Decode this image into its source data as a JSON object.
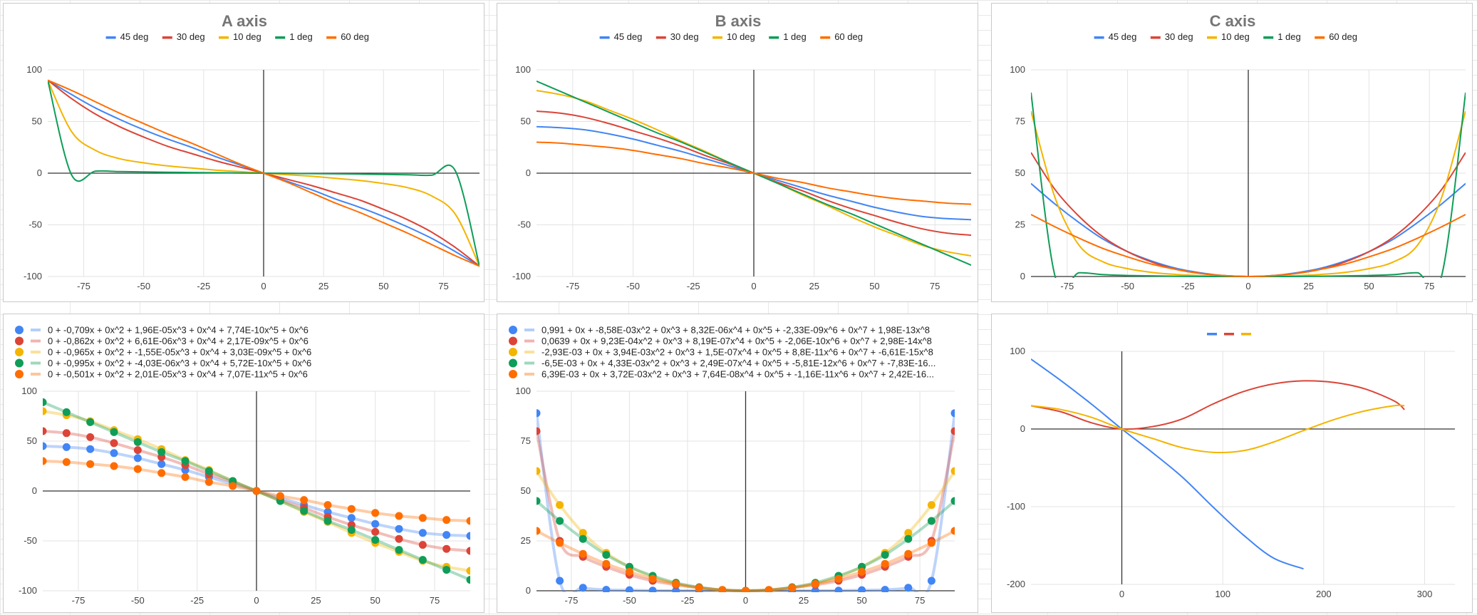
{
  "chart_data": [
    {
      "id": "A",
      "type": "line",
      "title": "A axis",
      "legend_position": "top",
      "grid": true,
      "xlim": [
        -90,
        90
      ],
      "ylim": [
        -100,
        100
      ],
      "xticks": [
        -75,
        -50,
        -25,
        0,
        25,
        50,
        75
      ],
      "yticks": [
        100,
        50,
        0,
        -50,
        -100
      ],
      "series": [
        {
          "name": "45 deg",
          "color": "#4285f4"
        },
        {
          "name": "30 deg",
          "color": "#db4437"
        },
        {
          "name": "10 deg",
          "color": "#f4b400"
        },
        {
          "name": "1 deg",
          "color": "#0f9d58"
        },
        {
          "name": "60 deg",
          "color": "#ff6d01"
        }
      ],
      "x": [
        -90,
        -80,
        -70,
        -60,
        -50,
        -40,
        -30,
        -20,
        -10,
        0,
        10,
        20,
        30,
        40,
        50,
        60,
        70,
        80,
        90
      ],
      "data": [
        [
          90,
          76,
          63,
          52,
          42,
          33,
          25,
          16,
          8,
          0,
          -8,
          -16,
          -25,
          -33,
          -42,
          -52,
          -63,
          -76,
          -90
        ],
        [
          90,
          72,
          57,
          45,
          35,
          26,
          19,
          12,
          6,
          0,
          -6,
          -12,
          -19,
          -26,
          -35,
          -45,
          -57,
          -72,
          -90
        ],
        [
          90,
          40,
          22,
          14,
          10,
          7,
          5,
          3,
          1.5,
          0,
          -1.5,
          -3,
          -5,
          -7,
          -10,
          -14,
          -22,
          -40,
          -90
        ],
        [
          90,
          -2,
          2,
          1.5,
          1.2,
          0.9,
          0.6,
          0.4,
          0.2,
          0,
          -0.2,
          -0.4,
          -0.6,
          -0.9,
          -1.2,
          -1.5,
          -2,
          2,
          -90
        ],
        [
          90,
          80,
          69,
          58,
          48,
          38,
          29,
          19,
          9,
          0,
          -9,
          -19,
          -29,
          -38,
          -48,
          -58,
          -69,
          -80,
          -90
        ]
      ]
    },
    {
      "id": "B",
      "type": "line",
      "title": "B axis",
      "legend_position": "top",
      "grid": true,
      "xlim": [
        -90,
        90
      ],
      "ylim": [
        -100,
        100
      ],
      "xticks": [
        -75,
        -50,
        -25,
        0,
        25,
        50,
        75
      ],
      "yticks": [
        100,
        50,
        0,
        -50,
        -100
      ],
      "series": [
        {
          "name": "45 deg",
          "color": "#4285f4"
        },
        {
          "name": "30 deg",
          "color": "#db4437"
        },
        {
          "name": "10 deg",
          "color": "#f4b400"
        },
        {
          "name": "1 deg",
          "color": "#0f9d58"
        },
        {
          "name": "60 deg",
          "color": "#ff6d01"
        }
      ],
      "x": [
        -90,
        -80,
        -70,
        -60,
        -50,
        -40,
        -30,
        -20,
        -10,
        0,
        10,
        20,
        30,
        40,
        50,
        60,
        70,
        80,
        90
      ],
      "data": [
        [
          45,
          44,
          42,
          38,
          33,
          27,
          21,
          14,
          7,
          0,
          -7,
          -14,
          -21,
          -27,
          -33,
          -38,
          -42,
          -44,
          -45
        ],
        [
          60,
          58,
          54,
          48,
          41,
          34,
          26,
          17,
          9,
          0,
          -9,
          -17,
          -26,
          -34,
          -41,
          -48,
          -54,
          -58,
          -60
        ],
        [
          80,
          76,
          70,
          61,
          52,
          42,
          31,
          21,
          10,
          0,
          -10,
          -21,
          -31,
          -42,
          -52,
          -61,
          -70,
          -76,
          -80
        ],
        [
          89,
          79,
          69,
          59,
          49,
          39,
          30,
          20,
          10,
          0,
          -10,
          -20,
          -30,
          -39,
          -49,
          -59,
          -69,
          -79,
          -89
        ],
        [
          30,
          29,
          27,
          25,
          22,
          18,
          14,
          9,
          5,
          0,
          -5,
          -9,
          -14,
          -18,
          -22,
          -25,
          -27,
          -29,
          -30
        ]
      ]
    },
    {
      "id": "C",
      "type": "line",
      "title": "C axis",
      "legend_position": "top",
      "grid": true,
      "xlim": [
        -90,
        90
      ],
      "ylim": [
        0,
        100
      ],
      "xticks": [
        -75,
        -50,
        -25,
        0,
        25,
        50,
        75
      ],
      "yticks": [
        100,
        75,
        50,
        25,
        0
      ],
      "series": [
        {
          "name": "45 deg",
          "color": "#4285f4"
        },
        {
          "name": "30 deg",
          "color": "#db4437"
        },
        {
          "name": "10 deg",
          "color": "#f4b400"
        },
        {
          "name": "1 deg",
          "color": "#0f9d58"
        },
        {
          "name": "60 deg",
          "color": "#ff6d01"
        }
      ],
      "x": [
        -90,
        -80,
        -70,
        -60,
        -50,
        -40,
        -30,
        -20,
        -10,
        0,
        10,
        20,
        30,
        40,
        50,
        60,
        70,
        80,
        90
      ],
      "data": [
        [
          45,
          35,
          26,
          18,
          12,
          7.5,
          4,
          1.8,
          0.4,
          0,
          0.4,
          1.8,
          4,
          7.5,
          12,
          18,
          26,
          35,
          45
        ],
        [
          60,
          42,
          29,
          19,
          12,
          7,
          3.5,
          1.5,
          0.4,
          0,
          0.4,
          1.5,
          3.5,
          7,
          12,
          19,
          29,
          42,
          60
        ],
        [
          80,
          38,
          15,
          7,
          3.8,
          2,
          1,
          0.4,
          0.1,
          0,
          0.1,
          0.4,
          1,
          2,
          3.8,
          7,
          15,
          38,
          80
        ],
        [
          89,
          0,
          1.8,
          0.9,
          0.5,
          0.3,
          0.15,
          0.05,
          0,
          0,
          0,
          0.05,
          0.15,
          0.3,
          0.5,
          0.9,
          1.8,
          0,
          89
        ],
        [
          30,
          24,
          18.5,
          13.5,
          9.5,
          6,
          3.5,
          1.5,
          0.4,
          0,
          0.4,
          1.5,
          3.5,
          6,
          9.5,
          13.5,
          18.5,
          24,
          30
        ]
      ]
    },
    {
      "id": "A-trend",
      "type": "scatter",
      "legend_position": "top-left",
      "grid": true,
      "xlim": [
        -90,
        90
      ],
      "ylim": [
        -100,
        100
      ],
      "xticks": [
        -75,
        -50,
        -25,
        0,
        25,
        50,
        75
      ],
      "yticks": [
        100,
        50,
        0,
        -50,
        -100
      ],
      "series": [
        {
          "color": "#4285f4",
          "trendline": "0 + -0,709x + 0x^2 + 1,96E-05x^3 + 0x^4 + 7,74E-10x^5 + 0x^6"
        },
        {
          "color": "#db4437",
          "trendline": "0 + -0,862x + 0x^2 + 6,61E-06x^3 + 0x^4 + 2,17E-09x^5 + 0x^6"
        },
        {
          "color": "#f4b400",
          "trendline": "0 + -0,965x + 0x^2 + -1,55E-05x^3 + 0x^4 + 3,03E-09x^5 + 0x^6"
        },
        {
          "color": "#0f9d58",
          "trendline": "0 + -0,995x + 0x^2 + -4,03E-06x^3 + 0x^4 + 5,72E-10x^5 + 0x^6"
        },
        {
          "color": "#ff6d01",
          "trendline": "0 + -0,501x + 0x^2 + 2,01E-05x^3 + 0x^4 + 7,07E-11x^5 + 0x^6"
        }
      ],
      "x": [
        -90,
        -80,
        -70,
        -60,
        -50,
        -40,
        -30,
        -20,
        -10,
        0,
        10,
        20,
        30,
        40,
        50,
        60,
        70,
        80,
        90
      ],
      "data": [
        [
          45,
          44,
          42,
          38,
          33,
          27,
          21,
          14,
          7,
          0,
          -7,
          -14,
          -21,
          -27,
          -33,
          -38,
          -42,
          -44,
          -45
        ],
        [
          60,
          58,
          54,
          48,
          41,
          34,
          26,
          17,
          9,
          0,
          -9,
          -17,
          -26,
          -34,
          -41,
          -48,
          -54,
          -58,
          -60
        ],
        [
          80,
          76,
          70,
          61,
          52,
          42,
          31,
          21,
          10,
          0,
          -10,
          -21,
          -31,
          -42,
          -52,
          -61,
          -70,
          -76,
          -80
        ],
        [
          89,
          79,
          69,
          59,
          49,
          39,
          30,
          20,
          10,
          0,
          -10,
          -20,
          -30,
          -39,
          -49,
          -59,
          -69,
          -79,
          -89
        ],
        [
          30,
          29,
          27,
          25,
          22,
          18,
          14,
          9,
          5,
          0,
          -5,
          -9,
          -14,
          -18,
          -22,
          -25,
          -27,
          -29,
          -30
        ]
      ]
    },
    {
      "id": "C-trend",
      "type": "scatter",
      "legend_position": "top-left",
      "grid": true,
      "xlim": [
        -90,
        90
      ],
      "ylim": [
        0,
        100
      ],
      "xticks": [
        -75,
        -50,
        -25,
        0,
        25,
        50,
        75
      ],
      "yticks": [
        100,
        75,
        50,
        25,
        0
      ],
      "series": [
        {
          "color": "#4285f4",
          "trendline": "0,991 + 0x + -8,58E-03x^2 + 0x^3 + 8,32E-06x^4 + 0x^5 + -2,33E-09x^6 + 0x^7 + 1,98E-13x^8"
        },
        {
          "color": "#db4437",
          "trendline": "0,0639 + 0x + 9,23E-04x^2 + 0x^3 + 8,19E-07x^4 + 0x^5 + -2,06E-10x^6 + 0x^7 + 2,98E-14x^8"
        },
        {
          "color": "#f4b400",
          "trendline": "-2,93E-03 + 0x + 3,94E-03x^2 + 0x^3 + 1,5E-07x^4 + 0x^5 + 8,8E-11x^6 + 0x^7 + -6,61E-15x^8"
        },
        {
          "color": "#0f9d58",
          "trendline": "-6,5E-03 + 0x + 4,33E-03x^2 + 0x^3 + 2,49E-07x^4 + 0x^5 + -5,81E-12x^6 + 0x^7 + -7,83E-16..."
        },
        {
          "color": "#ff6d01",
          "trendline": "6,39E-03 + 0x + 3,72E-03x^2 + 0x^3 + 7,64E-08x^4 + 0x^5 + -1,16E-11x^6 + 0x^7 + 2,42E-16..."
        }
      ],
      "x": [
        -90,
        -80,
        -70,
        -60,
        -50,
        -40,
        -30,
        -20,
        -10,
        0,
        10,
        20,
        30,
        40,
        50,
        60,
        70,
        80,
        90
      ],
      "data": [
        [
          89,
          5,
          1.5,
          0.5,
          0.3,
          0.1,
          0,
          0,
          0,
          0,
          0,
          0,
          0,
          0.1,
          0.3,
          0.5,
          1.5,
          5,
          89
        ],
        [
          80,
          25,
          17,
          12,
          8,
          5,
          3,
          1.5,
          0.4,
          0,
          0.4,
          1.5,
          3,
          5,
          8,
          12,
          17,
          25,
          80
        ],
        [
          60,
          43,
          29,
          19,
          12,
          7,
          3.5,
          1.5,
          0.4,
          0,
          0.4,
          1.5,
          3.5,
          7,
          12,
          19,
          29,
          43,
          60
        ],
        [
          45,
          35,
          26,
          18,
          12,
          7.5,
          4,
          1.8,
          0.4,
          0,
          0.4,
          1.8,
          4,
          7.5,
          12,
          18,
          26,
          35,
          45
        ],
        [
          30,
          24,
          18.5,
          13.5,
          9.5,
          6,
          3.5,
          1.5,
          0.4,
          0,
          0.4,
          1.5,
          3.5,
          6,
          9.5,
          13.5,
          18.5,
          24,
          30
        ]
      ]
    },
    {
      "id": "XY",
      "type": "line",
      "legend_position": "top",
      "grid": true,
      "xlim": [
        -90,
        330
      ],
      "ylim": [
        -200,
        100
      ],
      "xticks": [
        0,
        100,
        200,
        300
      ],
      "yticks": [
        100,
        0,
        -100,
        -200
      ],
      "series": [
        {
          "color": "#4285f4",
          "x": [
            -90,
            -60,
            -30,
            0,
            30,
            60,
            90,
            120,
            150,
            180
          ],
          "y": [
            90,
            62,
            32,
            0,
            -30,
            -62,
            -100,
            -136,
            -166,
            -180
          ]
        },
        {
          "color": "#db4437",
          "x": [
            -90,
            -60,
            -30,
            0,
            30,
            60,
            90,
            120,
            150,
            180,
            210,
            240,
            270,
            280
          ],
          "y": [
            30,
            22,
            8,
            0,
            3,
            13,
            32,
            48,
            58,
            62,
            60,
            52,
            36,
            25
          ]
        },
        {
          "color": "#f4b400",
          "x": [
            -90,
            -60,
            -30,
            0,
            30,
            60,
            90,
            120,
            150,
            180,
            210,
            240,
            270,
            280
          ],
          "y": [
            30,
            25,
            15,
            0,
            -12,
            -24,
            -30,
            -28,
            -17,
            -2,
            12,
            23,
            30,
            30
          ]
        }
      ]
    }
  ]
}
